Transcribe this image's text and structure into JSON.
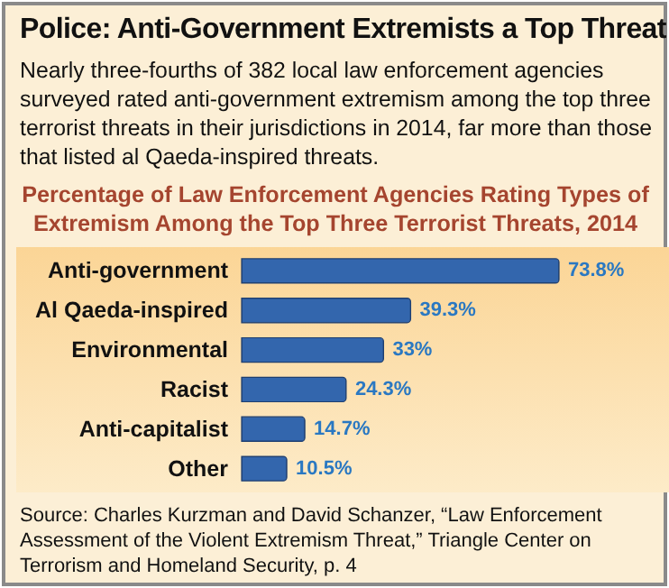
{
  "chart_data": {
    "type": "bar",
    "orientation": "horizontal",
    "title": "Police: Anti-Government Extremists a Top Threat",
    "subtitle": "Nearly three-fourths of 382 local law enforcement agencies surveyed rated anti-government extremism among the top three terrorist threats in their jurisdictions in 2014, far more than those that listed al Qaeda-inspired threats.",
    "annotations": [
      "Percentage of Law Enforcement Agencies Rating Types of Extremism Among the Top Three Terrorist Threats, 2014",
      "Source: Charles Kurzman and David Schanzer, “Law Enforcement Assessment of the Violent Extremism Threat,” Triangle Center on Terrorism and Homeland Security, p. 4"
    ],
    "categories": [
      "Anti-government",
      "Al Qaeda-inspired",
      "Environmental",
      "Racist",
      "Anti-capitalist",
      "Other"
    ],
    "values": [
      73.8,
      39.3,
      33,
      24.3,
      14.7,
      10.5
    ],
    "value_labels": [
      "73.8%",
      "39.3%",
      "33%",
      "24.3%",
      "14.7%",
      "10.5%"
    ],
    "color": "#3366ad",
    "grid": false
  }
}
